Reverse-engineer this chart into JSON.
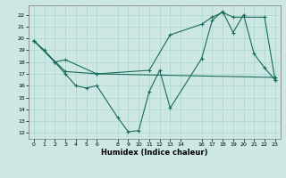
{
  "xlabel": "Humidex (Indice chaleur)",
  "bg_color": "#cde8e4",
  "grid_color": "#b0d8d4",
  "line_color": "#1a6b5a",
  "xlim": [
    -0.5,
    23.5
  ],
  "ylim": [
    11.5,
    22.8
  ],
  "yticks": [
    12,
    13,
    14,
    15,
    16,
    17,
    18,
    19,
    20,
    21,
    22
  ],
  "xticks": [
    0,
    1,
    2,
    3,
    4,
    5,
    6,
    8,
    9,
    10,
    11,
    12,
    13,
    14,
    16,
    17,
    18,
    19,
    20,
    21,
    22,
    23
  ],
  "line1_x": [
    0,
    1,
    2,
    3,
    4,
    5,
    6,
    8,
    9,
    10,
    11,
    12,
    13,
    16,
    17,
    18,
    19,
    20,
    21,
    22,
    23
  ],
  "line1_y": [
    19.8,
    19.0,
    18.0,
    17.0,
    16.0,
    15.8,
    16.0,
    13.3,
    12.1,
    12.2,
    15.5,
    17.3,
    14.1,
    18.3,
    21.5,
    22.3,
    20.5,
    22.0,
    18.7,
    17.5,
    16.5
  ],
  "line2_x": [
    0,
    2,
    3,
    6,
    11,
    13,
    16,
    17,
    18,
    19,
    22,
    23
  ],
  "line2_y": [
    19.8,
    18.0,
    18.2,
    17.0,
    17.3,
    20.3,
    21.2,
    21.8,
    22.2,
    21.8,
    21.8,
    16.5
  ],
  "line3_x": [
    0,
    3,
    6,
    23
  ],
  "line3_y": [
    19.8,
    17.2,
    17.0,
    16.7
  ]
}
